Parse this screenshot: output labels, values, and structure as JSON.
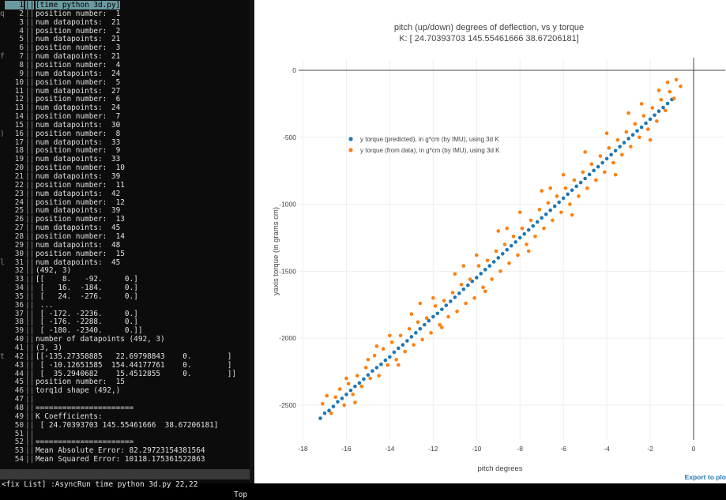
{
  "terminal": {
    "lines": [
      {
        "n": "1",
        "g": "",
        "t": "[time python 3d.py]",
        "hl": true
      },
      {
        "n": "2",
        "g": "q",
        "t": "position number:  1"
      },
      {
        "n": "3",
        "g": "",
        "t": "num datapoints:  21"
      },
      {
        "n": "4",
        "g": "",
        "t": "position number:  2"
      },
      {
        "n": "5",
        "g": "",
        "t": "num datapoints:  21"
      },
      {
        "n": "6",
        "g": "",
        "t": "position number:  3"
      },
      {
        "n": "7",
        "g": "f",
        "t": "num datapoints:  21"
      },
      {
        "n": "8",
        "g": "",
        "t": "position number:  4"
      },
      {
        "n": "9",
        "g": "",
        "t": "num datapoints:  24"
      },
      {
        "n": "10",
        "g": "",
        "t": "position number:  5"
      },
      {
        "n": "11",
        "g": "",
        "t": "num datapoints:  27"
      },
      {
        "n": "12",
        "g": "",
        "t": "position number:  6"
      },
      {
        "n": "13",
        "g": "",
        "t": "num datapoints:  24"
      },
      {
        "n": "14",
        "g": "",
        "t": "position number:  7"
      },
      {
        "n": "15",
        "g": "",
        "t": "num datapoints:  30"
      },
      {
        "n": "16",
        "g": ")",
        "t": "position number:  8"
      },
      {
        "n": "17",
        "g": "",
        "t": "num datapoints:  33"
      },
      {
        "n": "18",
        "g": "",
        "t": "position number:  9"
      },
      {
        "n": "19",
        "g": "",
        "t": "num datapoints:  33"
      },
      {
        "n": "20",
        "g": "",
        "t": "position number:  10"
      },
      {
        "n": "21",
        "g": "",
        "t": "num datapoints:  39"
      },
      {
        "n": "22",
        "g": "",
        "t": "position number:  11"
      },
      {
        "n": "23",
        "g": "",
        "t": "num datapoints:  42"
      },
      {
        "n": "24",
        "g": "",
        "t": "position number:  12"
      },
      {
        "n": "25",
        "g": "",
        "t": "num datapoints:  39"
      },
      {
        "n": "26",
        "g": "",
        "t": "position number:  13"
      },
      {
        "n": "27",
        "g": "",
        "t": "num datapoints:  45"
      },
      {
        "n": "28",
        "g": "",
        "t": "position number:  14"
      },
      {
        "n": "29",
        "g": "",
        "t": "num datapoints:  48"
      },
      {
        "n": "30",
        "g": "",
        "t": "position number:  15"
      },
      {
        "n": "31",
        "g": "l",
        "t": "num datapoints:  45"
      },
      {
        "n": "32",
        "g": "",
        "t": "(492, 3)"
      },
      {
        "n": "33",
        "g": "",
        "t": "[[    8.   -92.     0.]"
      },
      {
        "n": "34",
        "g": "",
        "t": " [   16.  -184.     0.]"
      },
      {
        "n": "35",
        "g": "",
        "t": " [   24.  -276.     0.]"
      },
      {
        "n": "36",
        "g": "",
        "t": " ..."
      },
      {
        "n": "37",
        "g": "",
        "t": " [ -172. -2236.     0.]"
      },
      {
        "n": "38",
        "g": "",
        "t": " [ -176. -2288.     0.]"
      },
      {
        "n": "39",
        "g": "",
        "t": " [ -180. -2340.     0.]]"
      },
      {
        "n": "40",
        "g": "",
        "t": "number of datapoints (492, 3)"
      },
      {
        "n": "41",
        "g": "",
        "t": "(3, 3)"
      },
      {
        "n": "42",
        "g": "t",
        "t": "[[-135.27358885   22.69798843    0.        ]"
      },
      {
        "n": "43",
        "g": "",
        "t": " [ -10.12651585  154.44177761    0.        ]"
      },
      {
        "n": "44",
        "g": "",
        "t": " [  35.2940682    15.4512855     0.        ]]"
      },
      {
        "n": "45",
        "g": "",
        "t": "position number:  15"
      },
      {
        "n": "46",
        "g": "",
        "t": "torq1d shape (492,)"
      },
      {
        "n": "47",
        "g": "",
        "t": ""
      },
      {
        "n": "48",
        "g": "",
        "t": "======================"
      },
      {
        "n": "49",
        "g": "",
        "t": "K Coefficients:"
      },
      {
        "n": "50",
        "g": "",
        "t": " [ 24.70393703 145.55461666  38.67206181]"
      },
      {
        "n": "51",
        "g": "",
        "t": ""
      },
      {
        "n": "52",
        "g": "",
        "t": "======================"
      },
      {
        "n": "53",
        "g": "",
        "t": "Mean Absolute Error: 82.29723154381564"
      },
      {
        "n": "54",
        "g": "",
        "t": "Mean Squared Error: 10118.175361522863"
      }
    ],
    "status_left": "<fix List] :AsyncRun time python 3d.py 22,22",
    "status_right": "Top"
  },
  "plot": {
    "export_label": "Export to plo",
    "chart_data": {
      "type": "scatter",
      "title": "pitch (up/down) degrees of deflection, vs y torque",
      "subtitle": "K: [ 24.70393703 145.55461666  38.67206181]",
      "xlabel": "pitch degrees",
      "ylabel": "yaxis torque (in grams cm)",
      "xlim": [
        -18.2,
        0
      ],
      "ylim": [
        -2760,
        0
      ],
      "xticks": [
        -18,
        -16,
        -14,
        -12,
        -10,
        -8,
        -6,
        -4,
        -2,
        0
      ],
      "yticks": [
        0,
        -500,
        -1000,
        -1500,
        -2000,
        -2500
      ],
      "grid": true,
      "legend_position": "upper-left inside",
      "series": [
        {
          "name": "y torque (predicted), in g*cm (by IMU), using 3d K",
          "color": "#1f77b4",
          "points": [
            [
              -17.2,
              -2598
            ],
            [
              -17.0,
              -2560
            ],
            [
              -16.8,
              -2540
            ],
            [
              -16.6,
              -2510
            ],
            [
              -16.4,
              -2475
            ],
            [
              -16.2,
              -2450
            ],
            [
              -16.0,
              -2420
            ],
            [
              -15.8,
              -2390
            ],
            [
              -15.6,
              -2360
            ],
            [
              -15.4,
              -2335
            ],
            [
              -15.2,
              -2305
            ],
            [
              -15.0,
              -2275
            ],
            [
              -14.8,
              -2245
            ],
            [
              -14.6,
              -2220
            ],
            [
              -14.4,
              -2195
            ],
            [
              -14.2,
              -2165
            ],
            [
              -14.0,
              -2140
            ],
            [
              -13.8,
              -2105
            ],
            [
              -13.6,
              -2075
            ],
            [
              -13.4,
              -2050
            ],
            [
              -13.2,
              -2020
            ],
            [
              -13.0,
              -1990
            ],
            [
              -12.8,
              -1960
            ],
            [
              -12.6,
              -1930
            ],
            [
              -12.4,
              -1900
            ],
            [
              -12.2,
              -1870
            ],
            [
              -12.0,
              -1840
            ],
            [
              -11.8,
              -1815
            ],
            [
              -11.6,
              -1785
            ],
            [
              -11.4,
              -1755
            ],
            [
              -11.2,
              -1725
            ],
            [
              -11.0,
              -1695
            ],
            [
              -10.8,
              -1665
            ],
            [
              -10.6,
              -1635
            ],
            [
              -10.4,
              -1605
            ],
            [
              -10.2,
              -1575
            ],
            [
              -10.0,
              -1548
            ],
            [
              -9.8,
              -1518
            ],
            [
              -9.6,
              -1488
            ],
            [
              -9.4,
              -1460
            ],
            [
              -9.2,
              -1430
            ],
            [
              -9.0,
              -1400
            ],
            [
              -8.8,
              -1370
            ],
            [
              -8.6,
              -1340
            ],
            [
              -8.4,
              -1310
            ],
            [
              -8.2,
              -1282
            ],
            [
              -8.0,
              -1250
            ],
            [
              -7.8,
              -1222
            ],
            [
              -7.6,
              -1192
            ],
            [
              -7.4,
              -1162
            ],
            [
              -7.2,
              -1132
            ],
            [
              -7.0,
              -1102
            ],
            [
              -6.8,
              -1075
            ],
            [
              -6.6,
              -1045
            ],
            [
              -6.4,
              -1015
            ],
            [
              -6.2,
              -985
            ],
            [
              -6.0,
              -955
            ],
            [
              -5.8,
              -925
            ],
            [
              -5.6,
              -895
            ],
            [
              -5.4,
              -866
            ],
            [
              -5.2,
              -838
            ],
            [
              -5.0,
              -808
            ],
            [
              -4.8,
              -778
            ],
            [
              -4.6,
              -748
            ],
            [
              -4.4,
              -720
            ],
            [
              -4.2,
              -690
            ],
            [
              -4.0,
              -660
            ],
            [
              -3.8,
              -630
            ],
            [
              -3.6,
              -600
            ],
            [
              -3.4,
              -570
            ],
            [
              -3.2,
              -540
            ],
            [
              -3.0,
              -510
            ],
            [
              -2.8,
              -482
            ],
            [
              -2.6,
              -452
            ],
            [
              -2.4,
              -425
            ],
            [
              -2.2,
              -395
            ],
            [
              -2.0,
              -365
            ],
            [
              -1.8,
              -335
            ],
            [
              -1.6,
              -305
            ],
            [
              -1.4,
              -278
            ],
            [
              -1.2,
              -248
            ],
            [
              -1.0,
              -218
            ]
          ]
        },
        {
          "name": "y torque (from data), in g*cm (by IMU), using 3d K",
          "color": "#ff7f0e",
          "points": [
            [
              -17.1,
              -2490
            ],
            [
              -16.9,
              -2430
            ],
            [
              -16.7,
              -2560
            ],
            [
              -16.5,
              -2440
            ],
            [
              -16.3,
              -2380
            ],
            [
              -16.1,
              -2500
            ],
            [
              -15.9,
              -2340
            ],
            [
              -15.7,
              -2420
            ],
            [
              -15.5,
              -2280
            ],
            [
              -15.3,
              -2360
            ],
            [
              -15.1,
              -2220
            ],
            [
              -14.9,
              -2300
            ],
            [
              -14.7,
              -2130
            ],
            [
              -14.5,
              -2280
            ],
            [
              -14.3,
              -2080
            ],
            [
              -14.1,
              -2200
            ],
            [
              -13.9,
              -2030
            ],
            [
              -13.7,
              -2160
            ],
            [
              -13.5,
              -1980
            ],
            [
              -13.3,
              -2100
            ],
            [
              -13.1,
              -1930
            ],
            [
              -12.9,
              -2050
            ],
            [
              -12.7,
              -1880
            ],
            [
              -12.5,
              -2010
            ],
            [
              -12.3,
              -1850
            ],
            [
              -12.1,
              -1960
            ],
            [
              -11.9,
              -1760
            ],
            [
              -11.7,
              -1900
            ],
            [
              -11.5,
              -1720
            ],
            [
              -11.3,
              -1840
            ],
            [
              -11.1,
              -1660
            ],
            [
              -10.9,
              -1800
            ],
            [
              -10.7,
              -1600
            ],
            [
              -10.5,
              -1740
            ],
            [
              -10.3,
              -1560
            ],
            [
              -10.1,
              -1700
            ],
            [
              -9.9,
              -1460
            ],
            [
              -9.7,
              -1620
            ],
            [
              -9.5,
              -1420
            ],
            [
              -9.3,
              -1560
            ],
            [
              -9.1,
              -1350
            ],
            [
              -8.9,
              -1500
            ],
            [
              -8.7,
              -1300
            ],
            [
              -8.5,
              -1440
            ],
            [
              -8.3,
              -1240
            ],
            [
              -8.1,
              -1380
            ],
            [
              -7.9,
              -1180
            ],
            [
              -7.7,
              -1300
            ],
            [
              -7.5,
              -1120
            ],
            [
              -7.3,
              -1240
            ],
            [
              -7.1,
              -1040
            ],
            [
              -6.9,
              -1180
            ],
            [
              -6.7,
              -990
            ],
            [
              -6.5,
              -1120
            ],
            [
              -6.3,
              -940
            ],
            [
              -6.1,
              -1060
            ],
            [
              -5.9,
              -880
            ],
            [
              -5.7,
              -1000
            ],
            [
              -5.5,
              -820
            ],
            [
              -5.3,
              -940
            ],
            [
              -5.1,
              -760
            ],
            [
              -4.9,
              -880
            ],
            [
              -4.7,
              -700
            ],
            [
              -4.5,
              -820
            ],
            [
              -4.3,
              -640
            ],
            [
              -4.1,
              -760
            ],
            [
              -3.9,
              -580
            ],
            [
              -3.7,
              -690
            ],
            [
              -3.5,
              -520
            ],
            [
              -3.3,
              -630
            ],
            [
              -3.1,
              -460
            ],
            [
              -2.9,
              -570
            ],
            [
              -2.7,
              -400
            ],
            [
              -2.5,
              -500
            ],
            [
              -2.3,
              -340
            ],
            [
              -2.1,
              -440
            ],
            [
              -1.9,
              -280
            ],
            [
              -1.7,
              -380
            ],
            [
              -1.5,
              -220
            ],
            [
              -1.3,
              -300
            ],
            [
              -1.1,
              -160
            ],
            [
              -0.9,
              -210
            ],
            [
              -0.8,
              -70
            ],
            [
              -0.6,
              -120
            ],
            [
              -1.6,
              -150
            ],
            [
              -1.2,
              -90
            ],
            [
              -2.4,
              -250
            ],
            [
              -3.0,
              -320
            ],
            [
              -4.0,
              -470
            ],
            [
              -5.0,
              -610
            ],
            [
              -6.0,
              -780
            ],
            [
              -7.0,
              -900
            ],
            [
              -8.0,
              -1060
            ],
            [
              -9.0,
              -1200
            ],
            [
              -10.0,
              -1380
            ],
            [
              -11.0,
              -1520
            ],
            [
              -12.0,
              -1700
            ],
            [
              -13.0,
              -1820
            ],
            [
              -14.0,
              -1980
            ],
            [
              -15.0,
              -2160
            ],
            [
              -16.0,
              -2300
            ],
            [
              -15.6,
              -2480
            ],
            [
              -13.6,
              -2200
            ],
            [
              -11.6,
              -1920
            ],
            [
              -9.6,
              -1650
            ],
            [
              -7.6,
              -1350
            ],
            [
              -5.6,
              -1080
            ],
            [
              -3.6,
              -780
            ],
            [
              -2.0,
              -520
            ],
            [
              -6.6,
              -880
            ],
            [
              -8.6,
              -1180
            ],
            [
              -10.6,
              -1460
            ],
            [
              -12.6,
              -1740
            ],
            [
              -14.6,
              -2060
            ]
          ]
        }
      ]
    }
  }
}
